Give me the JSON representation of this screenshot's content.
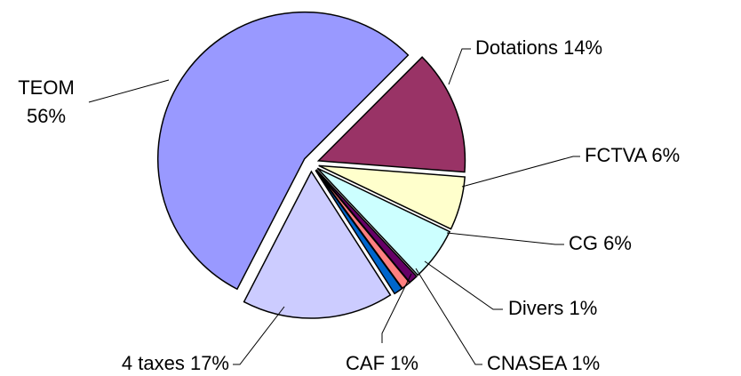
{
  "chart_data": {
    "type": "pie",
    "categories": [
      "Dotations",
      "FCTVA",
      "CG",
      "Divers",
      "CNASEA",
      "CAF",
      "4 taxes",
      "TEOM"
    ],
    "values": [
      14,
      6,
      6,
      1,
      1,
      1,
      17,
      56
    ],
    "value_labels": [
      "14%",
      "6%",
      "6%",
      "1%",
      "1%",
      "1%",
      "17%",
      "56%"
    ],
    "colors": [
      "#993366",
      "#ffffcc",
      "#ccffff",
      "#660066",
      "#ff8080",
      "#0066cc",
      "#ccccff",
      "#9999ff"
    ]
  }
}
